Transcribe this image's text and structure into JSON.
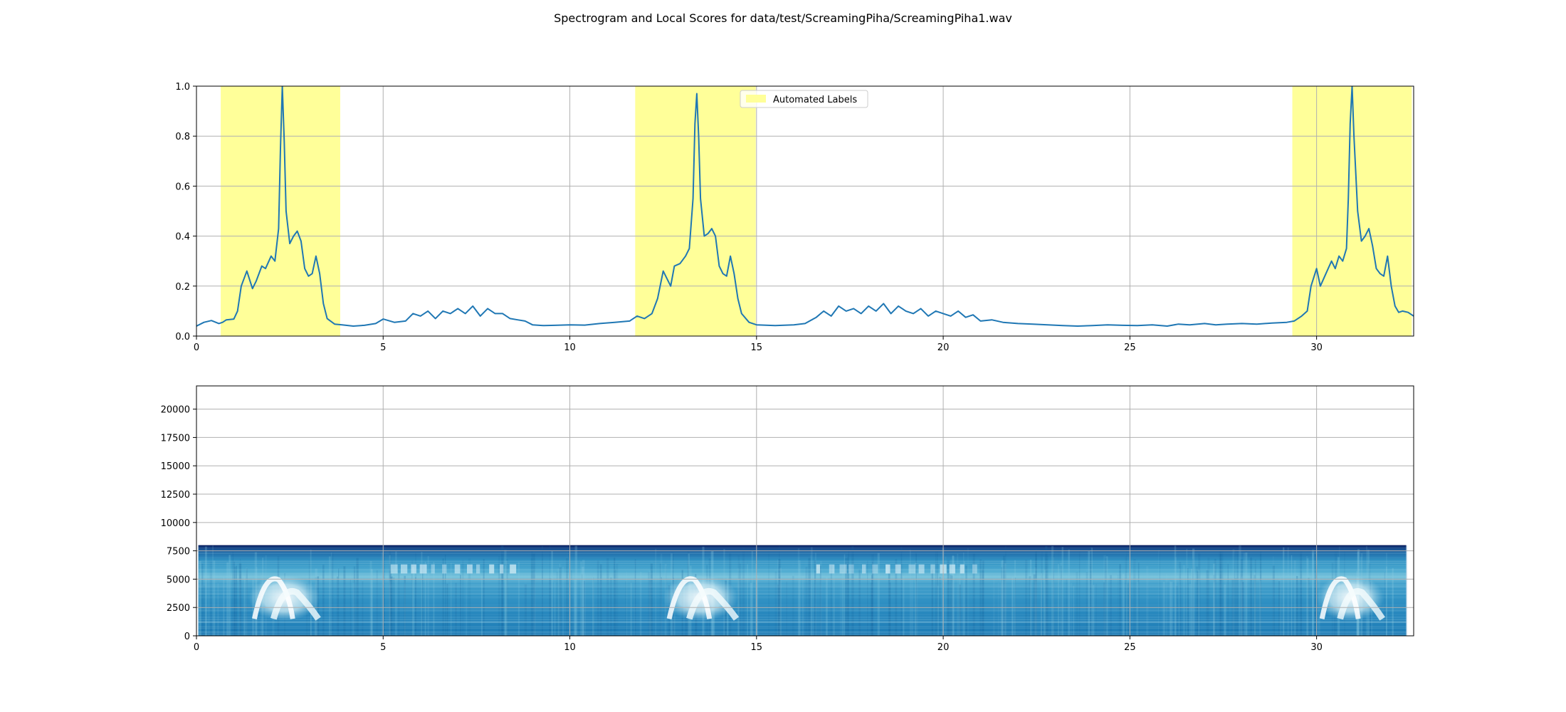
{
  "figure": {
    "title": "Spectrogram and Local Scores for data/test/ScreamingPiha/ScreamingPiha1.wav"
  },
  "chart_data": [
    {
      "type": "line",
      "name": "local-scores",
      "title": "",
      "xlabel": "",
      "ylabel": "",
      "xlim": [
        0,
        32.6
      ],
      "ylim": [
        0,
        1.0
      ],
      "x_ticks": [
        0,
        5,
        10,
        15,
        20,
        25,
        30
      ],
      "y_ticks": [
        0.0,
        0.2,
        0.4,
        0.6,
        0.8,
        1.0
      ],
      "x_tick_labels": [
        "0",
        "5",
        "10",
        "15",
        "20",
        "25",
        "30"
      ],
      "y_tick_labels": [
        "0.0",
        "0.2",
        "0.4",
        "0.6",
        "0.8",
        "1.0"
      ],
      "grid": true,
      "legend": {
        "placement": "upper-center",
        "entries": [
          "Automated Labels"
        ]
      },
      "annotations": {
        "label": "Automated Labels",
        "color": "#ffff99",
        "spans": [
          [
            0.65,
            3.85
          ],
          [
            11.75,
            14.98
          ],
          [
            29.35,
            32.55
          ]
        ]
      },
      "line_color": "#1f77b4",
      "series": [
        {
          "x": [
            0,
            0.2,
            0.4,
            0.6,
            0.7,
            0.8,
            1.0,
            1.1,
            1.2,
            1.35,
            1.5,
            1.6,
            1.75,
            1.85,
            2.0,
            2.1,
            2.2,
            2.25,
            2.3,
            2.35,
            2.4,
            2.5,
            2.6,
            2.7,
            2.8,
            2.9,
            3.0,
            3.1,
            3.2,
            3.3,
            3.4,
            3.5,
            3.7,
            3.9,
            4.2,
            4.5,
            4.8,
            5.0,
            5.3,
            5.6,
            5.8,
            6.0,
            6.2,
            6.4,
            6.6,
            6.8,
            7.0,
            7.2,
            7.4,
            7.6,
            7.8,
            8.0,
            8.2,
            8.4,
            8.6,
            8.8,
            9.0,
            9.3,
            9.6,
            10.0,
            10.4,
            10.8,
            11.2,
            11.6,
            11.8,
            12.0,
            12.2,
            12.35,
            12.5,
            12.7,
            12.8,
            12.95,
            13.1,
            13.2,
            13.3,
            13.35,
            13.4,
            13.45,
            13.5,
            13.6,
            13.7,
            13.8,
            13.9,
            14.0,
            14.1,
            14.2,
            14.3,
            14.4,
            14.5,
            14.6,
            14.8,
            15.0,
            15.5,
            16.0,
            16.3,
            16.6,
            16.8,
            17.0,
            17.2,
            17.4,
            17.6,
            17.8,
            18.0,
            18.2,
            18.4,
            18.6,
            18.8,
            19.0,
            19.2,
            19.4,
            19.6,
            19.8,
            20.0,
            20.2,
            20.4,
            20.6,
            20.8,
            21.0,
            21.3,
            21.6,
            22.0,
            22.4,
            22.8,
            23.2,
            23.6,
            24.0,
            24.4,
            24.8,
            25.2,
            25.6,
            26.0,
            26.3,
            26.6,
            27.0,
            27.3,
            27.6,
            28.0,
            28.4,
            28.8,
            29.2,
            29.4,
            29.6,
            29.75,
            29.85,
            30.0,
            30.1,
            30.25,
            30.4,
            30.5,
            30.6,
            30.7,
            30.8,
            30.85,
            30.9,
            30.95,
            31.0,
            31.1,
            31.2,
            31.3,
            31.4,
            31.5,
            31.6,
            31.7,
            31.8,
            31.9,
            32.0,
            32.1,
            32.2,
            32.3,
            32.45,
            32.6
          ],
          "y": [
            0.04,
            0.055,
            0.062,
            0.05,
            0.055,
            0.065,
            0.068,
            0.1,
            0.2,
            0.26,
            0.19,
            0.22,
            0.28,
            0.27,
            0.32,
            0.3,
            0.43,
            0.75,
            1.0,
            0.78,
            0.5,
            0.37,
            0.4,
            0.42,
            0.38,
            0.27,
            0.24,
            0.25,
            0.32,
            0.25,
            0.13,
            0.07,
            0.048,
            0.045,
            0.04,
            0.043,
            0.05,
            0.068,
            0.055,
            0.06,
            0.09,
            0.08,
            0.1,
            0.07,
            0.1,
            0.09,
            0.11,
            0.09,
            0.12,
            0.08,
            0.11,
            0.09,
            0.09,
            0.07,
            0.065,
            0.06,
            0.045,
            0.042,
            0.043,
            0.045,
            0.044,
            0.05,
            0.055,
            0.06,
            0.08,
            0.07,
            0.09,
            0.15,
            0.26,
            0.2,
            0.28,
            0.29,
            0.32,
            0.35,
            0.55,
            0.85,
            0.97,
            0.8,
            0.55,
            0.4,
            0.41,
            0.43,
            0.4,
            0.28,
            0.25,
            0.24,
            0.32,
            0.25,
            0.15,
            0.09,
            0.055,
            0.045,
            0.042,
            0.045,
            0.05,
            0.075,
            0.1,
            0.08,
            0.12,
            0.1,
            0.11,
            0.09,
            0.12,
            0.1,
            0.13,
            0.09,
            0.12,
            0.1,
            0.09,
            0.11,
            0.08,
            0.1,
            0.09,
            0.08,
            0.1,
            0.075,
            0.085,
            0.06,
            0.065,
            0.055,
            0.05,
            0.048,
            0.045,
            0.042,
            0.04,
            0.042,
            0.045,
            0.043,
            0.042,
            0.045,
            0.04,
            0.048,
            0.045,
            0.05,
            0.045,
            0.048,
            0.05,
            0.048,
            0.052,
            0.055,
            0.06,
            0.08,
            0.1,
            0.2,
            0.27,
            0.2,
            0.25,
            0.3,
            0.27,
            0.32,
            0.3,
            0.35,
            0.55,
            0.85,
            1.0,
            0.8,
            0.5,
            0.38,
            0.4,
            0.43,
            0.36,
            0.27,
            0.25,
            0.24,
            0.32,
            0.2,
            0.12,
            0.095,
            0.1,
            0.095,
            0.08
          ]
        }
      ]
    },
    {
      "type": "heatmap",
      "name": "spectrogram",
      "title": "",
      "xlabel": "",
      "ylabel": "",
      "xlim": [
        0,
        32.6
      ],
      "ylim": [
        0,
        22050
      ],
      "x_ticks": [
        0,
        5,
        10,
        15,
        20,
        25,
        30
      ],
      "y_ticks": [
        0,
        2500,
        5000,
        7500,
        10000,
        12500,
        15000,
        17500,
        20000
      ],
      "x_tick_labels": [
        "0",
        "5",
        "10",
        "15",
        "20",
        "25",
        "30"
      ],
      "y_tick_labels": [
        "0",
        "2500",
        "5000",
        "7500",
        "10000",
        "12500",
        "15000",
        "17500",
        "20000"
      ],
      "grid": true,
      "colormap": "blue-white",
      "colors": {
        "low": "#1b82b8",
        "mid": "#62bcd6",
        "high": "#ffffff",
        "edge": "#061a5a"
      },
      "data_extent": {
        "time": [
          0.05,
          32.4
        ],
        "frequency": [
          0,
          8000
        ]
      },
      "calls": [
        {
          "start": 1.4,
          "end": 3.3,
          "freq_low": 1500,
          "freq_high": 5200
        },
        {
          "start": 12.5,
          "end": 14.5,
          "freq_low": 1500,
          "freq_high": 5200
        },
        {
          "start": 30.0,
          "end": 31.8,
          "freq_low": 1500,
          "freq_high": 5200
        }
      ]
    }
  ]
}
